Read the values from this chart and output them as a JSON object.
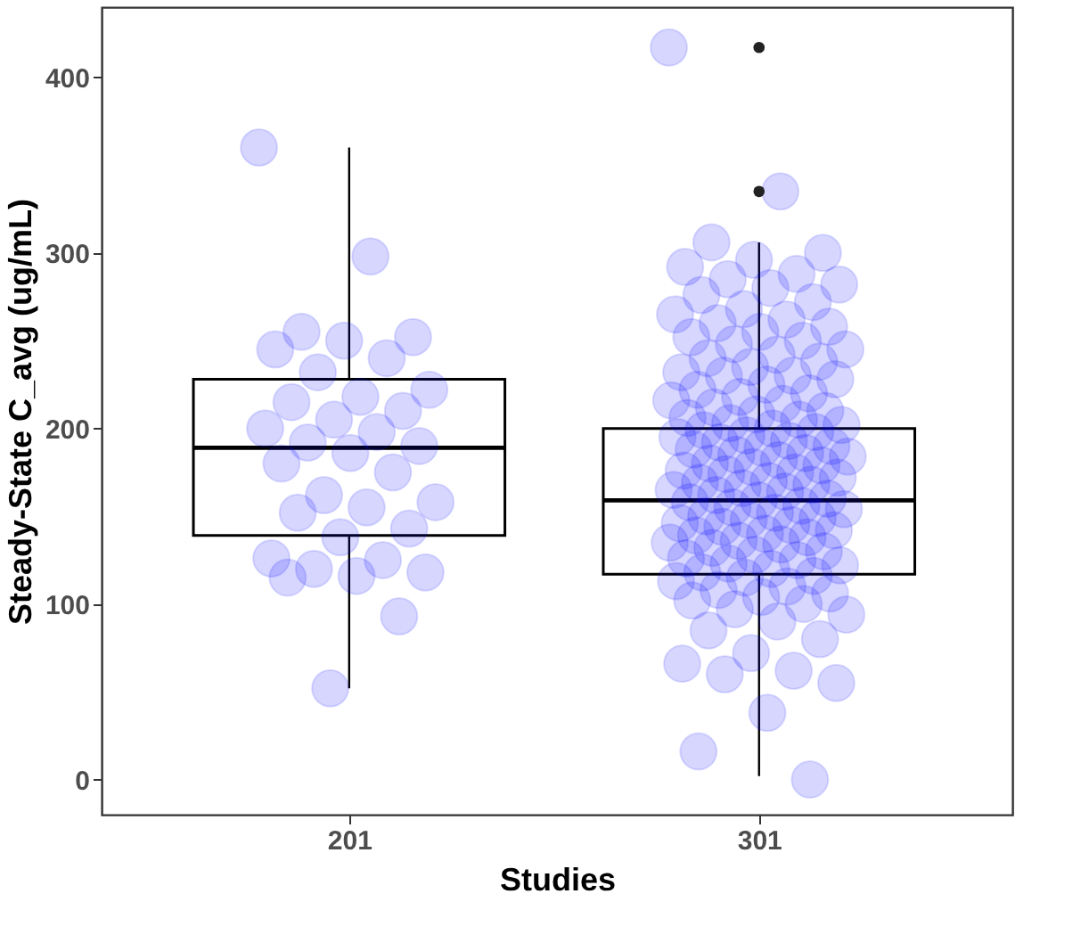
{
  "chart_data": {
    "type": "box",
    "xlabel": "Studies",
    "ylabel": "Steady-State C_avg (ug/mL)",
    "categories": [
      "201",
      "301"
    ],
    "ylim": [
      -20,
      440
    ],
    "yticks": [
      0,
      100,
      200,
      300,
      400
    ],
    "grid": false,
    "marker": "circle",
    "series": [
      {
        "type": "box",
        "color": "#000000",
        "boxes": [
          {
            "low": 52,
            "q1": 139,
            "median": 189,
            "q3": 228,
            "high": 360
          },
          {
            "low": 2,
            "q1": 117,
            "median": 159,
            "q3": 200,
            "high": 306,
            "outliers": [
              335,
              417
            ]
          }
        ]
      },
      {
        "type": "scatter",
        "color": "#0000ff",
        "x": [
          "201",
          "201",
          "201",
          "201",
          "201",
          "201",
          "201",
          "201",
          "201",
          "201",
          "201",
          "201",
          "201",
          "201",
          "201",
          "201",
          "201",
          "201",
          "201",
          "201",
          "201",
          "201",
          "201",
          "201",
          "201",
          "201",
          "201",
          "201",
          "201",
          "201",
          "201",
          "201",
          "201",
          "201"
        ],
        "values": [
          360,
          298,
          255,
          252,
          250,
          245,
          240,
          232,
          222,
          218,
          215,
          210,
          205,
          200,
          198,
          192,
          190,
          186,
          180,
          175,
          162,
          158,
          155,
          152,
          143,
          138,
          126,
          125,
          120,
          118,
          116,
          115,
          93,
          52
        ]
      },
      {
        "type": "scatter",
        "color": "#0000ff",
        "x": [
          "301",
          "301",
          "301",
          "301",
          "301",
          "301",
          "301",
          "301",
          "301",
          "301",
          "301",
          "301",
          "301",
          "301",
          "301",
          "301",
          "301",
          "301",
          "301",
          "301",
          "301",
          "301",
          "301",
          "301",
          "301",
          "301",
          "301",
          "301",
          "301",
          "301",
          "301",
          "301",
          "301",
          "301",
          "301",
          "301",
          "301",
          "301",
          "301",
          "301",
          "301",
          "301",
          "301",
          "301",
          "301",
          "301",
          "301",
          "301",
          "301",
          "301",
          "301",
          "301",
          "301",
          "301",
          "301",
          "301",
          "301",
          "301",
          "301",
          "301",
          "301",
          "301",
          "301",
          "301",
          "301",
          "301",
          "301",
          "301",
          "301",
          "301",
          "301",
          "301",
          "301",
          "301",
          "301",
          "301",
          "301",
          "301",
          "301",
          "301",
          "301",
          "301",
          "301",
          "301",
          "301",
          "301",
          "301",
          "301",
          "301",
          "301",
          "301",
          "301",
          "301",
          "301",
          "301",
          "301",
          "301",
          "301",
          "301",
          "301",
          "301",
          "301",
          "301",
          "301",
          "301",
          "301",
          "301",
          "301",
          "301",
          "301",
          "301",
          "301",
          "301",
          "301",
          "301",
          "301",
          "301",
          "301",
          "301",
          "301",
          "301",
          "301"
        ],
        "values": [
          417,
          335,
          306,
          300,
          296,
          292,
          288,
          285,
          282,
          280,
          276,
          272,
          268,
          265,
          262,
          260,
          258,
          255,
          252,
          250,
          248,
          245,
          242,
          240,
          238,
          235,
          232,
          230,
          230,
          228,
          225,
          222,
          220,
          218,
          216,
          214,
          212,
          210,
          208,
          206,
          205,
          203,
          202,
          200,
          199,
          198,
          196,
          195,
          193,
          192,
          190,
          189,
          188,
          186,
          185,
          184,
          182,
          180,
          179,
          178,
          176,
          175,
          174,
          172,
          170,
          169,
          168,
          166,
          165,
          164,
          162,
          160,
          159,
          158,
          156,
          155,
          154,
          152,
          150,
          149,
          148,
          146,
          145,
          144,
          142,
          140,
          139,
          138,
          136,
          135,
          134,
          132,
          130,
          128,
          126,
          125,
          123,
          122,
          120,
          118,
          116,
          115,
          113,
          110,
          108,
          106,
          104,
          102,
          100,
          97,
          94,
          90,
          85,
          80,
          72,
          66,
          62,
          60,
          55,
          38,
          16,
          0
        ]
      }
    ]
  }
}
